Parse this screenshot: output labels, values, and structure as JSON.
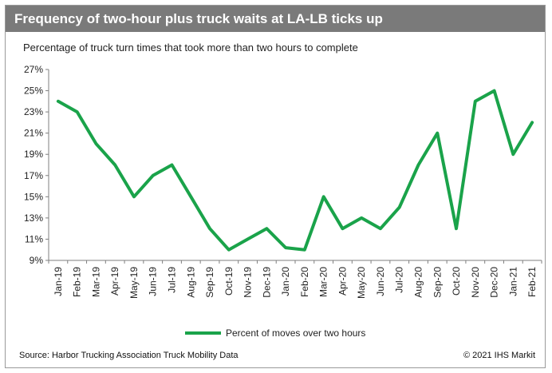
{
  "header": {
    "title": "Frequency of two-hour plus truck waits at LA-LB ticks up",
    "subtitle": "Percentage of truck turn times that took more than two hours to complete"
  },
  "footer": {
    "source": "Source: Harbor Trucking Association Truck Mobility Data",
    "copyright": "© 2021 IHS Markit"
  },
  "colors": {
    "line": "#1aa34a",
    "titlebar": "#7a7a7a"
  },
  "chart_data": {
    "type": "line",
    "categories": [
      "Jan-19",
      "Feb-19",
      "Mar-19",
      "Apr-19",
      "May-19",
      "Jun-19",
      "Jul-19",
      "Aug-19",
      "Sep-19",
      "Oct-19",
      "Nov-19",
      "Dec-19",
      "Jan-20",
      "Feb-20",
      "Mar-20",
      "Apr-20",
      "May-20",
      "Jun-20",
      "Jul-20",
      "Aug-20",
      "Sep-20",
      "Oct-20",
      "Nov-20",
      "Dec-20",
      "Jan-21",
      "Feb-21"
    ],
    "series": [
      {
        "name": "Percent of moves over two hours",
        "values": [
          24,
          23,
          20,
          18,
          15,
          17,
          18,
          15,
          12,
          10,
          11,
          12,
          10.2,
          10,
          15,
          12,
          13,
          12,
          14,
          18,
          21,
          12,
          24,
          25,
          19,
          22
        ]
      }
    ],
    "ylim": [
      9,
      27
    ],
    "y_ticks": [
      "27%",
      "25%",
      "23%",
      "21%",
      "19%",
      "17%",
      "15%",
      "13%",
      "11%",
      "9%"
    ],
    "y_tick_values": [
      27,
      25,
      23,
      21,
      19,
      17,
      15,
      13,
      11,
      9
    ],
    "legend_position": "bottom",
    "grid": false
  }
}
